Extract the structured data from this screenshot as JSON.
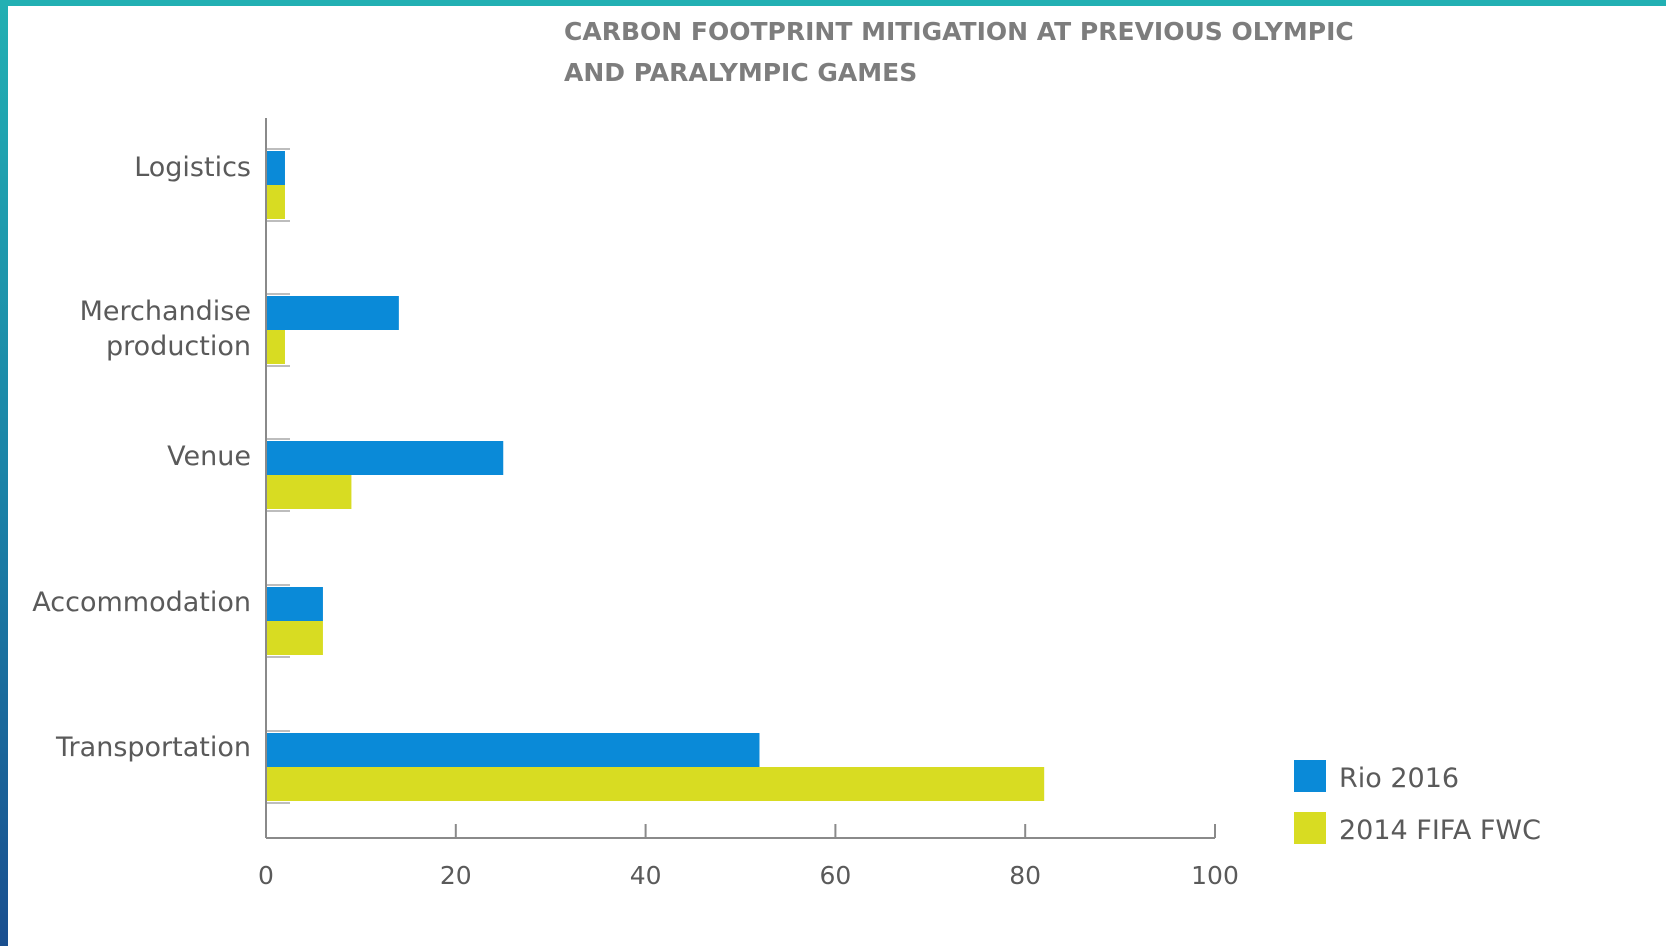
{
  "colors": {
    "rio": "#0a8ad8",
    "fwc": "#d8dc22"
  },
  "chart_data": {
    "type": "bar",
    "orientation": "horizontal",
    "title_lines": [
      "CARBON FOOTPRINT MITIGATION AT PREVIOUS OLYMPIC",
      "AND PARALYMPIC GAMES"
    ],
    "categories": [
      [
        "Logistics"
      ],
      [
        "Merchandise",
        "production"
      ],
      [
        "Venue"
      ],
      [
        "Accommodation"
      ],
      [
        "Transportation"
      ]
    ],
    "series": [
      {
        "name": "Rio 2016",
        "color": "#0a8ad8",
        "values": [
          2,
          14,
          25,
          6,
          52
        ]
      },
      {
        "name": "2014 FIFA FWC",
        "color": "#d8dc22",
        "values": [
          2,
          2,
          9,
          6,
          82
        ]
      }
    ],
    "xlim": [
      0,
      100
    ],
    "xticks": [
      "0",
      "20",
      "40",
      "60",
      "80",
      "100"
    ],
    "legend_position": "bottom-right",
    "grid": false
  }
}
